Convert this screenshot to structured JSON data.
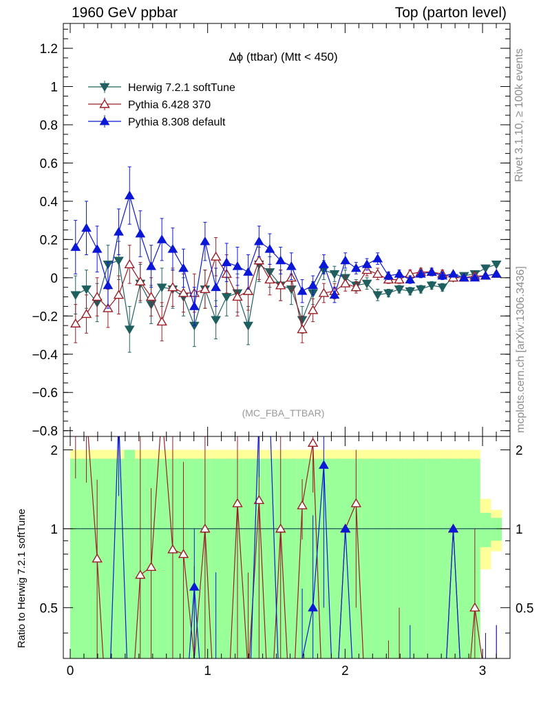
{
  "header": {
    "left": "1960 GeV ppbar",
    "right": "Top (parton level)"
  },
  "side": {
    "rivet": "Rivet 3.1.10, ≥ 100k events",
    "mcplots": "mcplots.cern.ch [arXiv:1306.3436]"
  },
  "colors": {
    "herwig": "#1f5f5f",
    "pythia6": "#9b1c25",
    "pythia8": "#0a17d6",
    "band_inner": "#99ff99",
    "band_outer": "#ffff99"
  },
  "chart_data": {
    "type": "line",
    "title": "Δϕ (ttbar) (Mtt < 450)",
    "watermark": "(MC_FBA_TTBAR)",
    "xlim": [
      -0.05,
      3.2
    ],
    "ylim": [
      -0.83,
      1.33
    ],
    "ratio_ylim": [
      0.32,
      2.25
    ],
    "ratio_ylabel": "Ratio to Herwig 7.2.1 softTune",
    "xticks": [
      "0",
      "1",
      "2",
      "3"
    ],
    "yticks": [
      "−0.8",
      "−0.6",
      "−0.4",
      "−0.2",
      "0",
      "0.2",
      "0.4",
      "0.6",
      "0.8",
      "1",
      "1.2"
    ],
    "ratio_yticks": [
      "0.5",
      "1",
      "2"
    ],
    "legend_position": "top-left",
    "x": [
      0.039,
      0.118,
      0.196,
      0.275,
      0.353,
      0.432,
      0.51,
      0.589,
      0.667,
      0.746,
      0.824,
      0.903,
      0.981,
      1.06,
      1.138,
      1.217,
      1.295,
      1.374,
      1.452,
      1.531,
      1.609,
      1.688,
      1.766,
      1.845,
      1.923,
      2.002,
      2.08,
      2.159,
      2.237,
      2.316,
      2.394,
      2.473,
      2.551,
      2.63,
      2.708,
      2.787,
      2.865,
      2.944,
      3.022,
      3.101
    ],
    "series": [
      {
        "name": "Herwig 7.2.1 softTune",
        "marker": "triangle-down-filled",
        "values": [
          -0.09,
          -0.06,
          -0.13,
          0.07,
          0.09,
          -0.27,
          -0.03,
          -0.14,
          -0.05,
          -0.06,
          -0.1,
          -0.25,
          -0.06,
          -0.22,
          -0.1,
          -0.08,
          -0.25,
          0.07,
          0.03,
          -0.04,
          -0.06,
          -0.22,
          -0.08,
          0.04,
          0.02,
          0.0,
          -0.04,
          -0.03,
          -0.09,
          -0.08,
          -0.06,
          -0.07,
          -0.06,
          -0.04,
          -0.05,
          0.0,
          0.01,
          0.02,
          0.05,
          0.07
        ],
        "errors": [
          0.1,
          0.1,
          0.1,
          0.1,
          0.1,
          0.12,
          0.1,
          0.1,
          0.1,
          0.1,
          0.1,
          0.11,
          0.1,
          0.1,
          0.1,
          0.1,
          0.1,
          0.09,
          0.08,
          0.08,
          0.08,
          0.07,
          0.06,
          0.05,
          0.04,
          0.04,
          0.03,
          0.03,
          0.03,
          0.02,
          0.02,
          0.02,
          0.02,
          0.02,
          0.02,
          0.01,
          0.01,
          0.01,
          0.01,
          0.01
        ]
      },
      {
        "name": "Pythia 6.428 370",
        "marker": "triangle-up-open",
        "values": [
          -0.24,
          -0.19,
          -0.1,
          -0.16,
          -0.09,
          0.07,
          -0.02,
          -0.1,
          -0.23,
          -0.05,
          -0.08,
          -0.08,
          -0.06,
          0.11,
          0.02,
          -0.1,
          -0.07,
          0.09,
          -0.01,
          -0.04,
          0.0,
          -0.27,
          -0.17,
          -0.08,
          -0.07,
          -0.03,
          -0.05,
          0.04,
          0.02,
          -0.01,
          -0.01,
          0.02,
          0.03,
          0.03,
          0.02,
          0.0,
          0.0,
          0.01,
          0.01,
          0.02
        ],
        "errors": [
          0.1,
          0.1,
          0.1,
          0.1,
          0.1,
          0.1,
          0.1,
          0.1,
          0.1,
          0.1,
          0.1,
          0.1,
          0.1,
          0.1,
          0.1,
          0.1,
          0.1,
          0.1,
          0.08,
          0.08,
          0.07,
          0.07,
          0.06,
          0.05,
          0.04,
          0.04,
          0.03,
          0.03,
          0.03,
          0.02,
          0.02,
          0.02,
          0.02,
          0.02,
          0.02,
          0.01,
          0.01,
          0.01,
          0.01,
          0.01
        ]
      },
      {
        "name": "Pythia 8.308 default",
        "marker": "triangle-up-filled",
        "values": [
          0.16,
          0.26,
          0.15,
          -0.04,
          0.24,
          0.43,
          0.23,
          0.06,
          0.2,
          0.15,
          0.05,
          -0.15,
          0.19,
          -0.05,
          0.08,
          0.06,
          0.03,
          0.19,
          0.15,
          0.09,
          0.06,
          -0.07,
          -0.04,
          0.07,
          -0.09,
          0.09,
          0.05,
          0.07,
          0.1,
          0.01,
          0.02,
          -0.01,
          0.02,
          0.03,
          0.01,
          0.02,
          0.0,
          0.0,
          0.01,
          0.02
        ],
        "errors": [
          0.14,
          0.14,
          0.12,
          0.12,
          0.12,
          0.15,
          0.12,
          0.11,
          0.11,
          0.11,
          0.1,
          0.1,
          0.1,
          0.1,
          0.1,
          0.1,
          0.09,
          0.08,
          0.08,
          0.07,
          0.07,
          0.06,
          0.05,
          0.05,
          0.04,
          0.04,
          0.03,
          0.03,
          0.03,
          0.02,
          0.02,
          0.02,
          0.02,
          0.02,
          0.02,
          0.01,
          0.01,
          0.01,
          0.01,
          0.01
        ]
      }
    ],
    "ratio_band_inner": [
      0.85,
      0.85,
      0.85,
      0.85,
      0.85,
      1.0,
      0.85,
      0.85,
      0.85,
      0.85,
      0.85,
      0.85,
      0.85,
      0.85,
      0.85,
      0.85,
      0.85,
      0.85,
      0.85,
      0.85,
      0.85,
      0.85,
      0.85,
      0.85,
      0.85,
      0.85,
      0.85,
      0.85,
      0.85,
      0.85,
      0.85,
      0.85,
      0.85,
      0.85,
      0.85,
      0.85,
      0.85,
      0.85,
      0.15,
      0.1
    ],
    "ratio_band_outer": [
      1.0,
      1.0,
      1.0,
      1.0,
      1.0,
      1.0,
      1.0,
      1.0,
      1.0,
      1.0,
      1.0,
      1.0,
      1.0,
      1.0,
      1.0,
      1.0,
      1.0,
      1.0,
      1.0,
      1.0,
      1.0,
      1.0,
      1.0,
      1.0,
      1.0,
      1.0,
      1.0,
      1.0,
      1.0,
      1.0,
      1.0,
      1.0,
      1.0,
      1.0,
      1.0,
      1.0,
      1.0,
      1.0,
      0.3,
      0.18
    ]
  }
}
